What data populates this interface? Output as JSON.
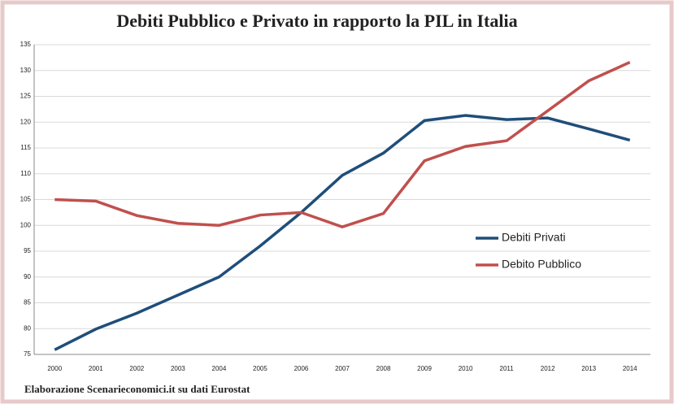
{
  "chart_data": {
    "type": "line",
    "title": "Debiti Pubblico e Privato in rapporto la PIL in Italia",
    "footnote": "Elaborazione Scenarieconomici.it su dati Eurostat",
    "categories": [
      "2000",
      "2001",
      "2002",
      "2003",
      "2004",
      "2005",
      "2006",
      "2007",
      "2008",
      "2009",
      "2010",
      "2011",
      "2012",
      "2013",
      "2014"
    ],
    "series": [
      {
        "name": "Debiti Privati",
        "color": "#1f4e79",
        "values": [
          75.9,
          79.9,
          83,
          86.5,
          90,
          96,
          102.5,
          109.7,
          114,
          120.3,
          121.3,
          120.5,
          120.8,
          118.7,
          116.5
        ]
      },
      {
        "name": "Debito Pubblico",
        "color": "#c0504d",
        "values": [
          105,
          104.7,
          101.9,
          100.4,
          100,
          102,
          102.5,
          99.7,
          102.3,
          112.5,
          115.3,
          116.4,
          122.2,
          128,
          131.6
        ]
      }
    ],
    "ylim": [
      75,
      135
    ],
    "yticks": [
      75,
      80,
      85,
      90,
      95,
      100,
      105,
      110,
      115,
      120,
      125,
      130,
      135
    ],
    "grid": true,
    "legend_position": "center-right"
  }
}
